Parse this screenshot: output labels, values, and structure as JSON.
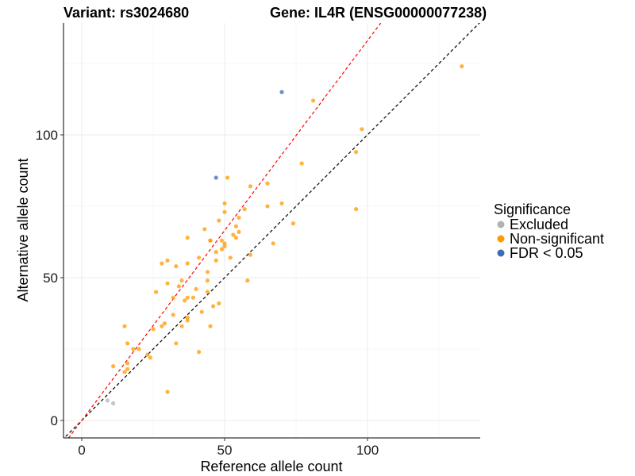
{
  "chart_data": {
    "type": "scatter",
    "title_left": "Variant: rs3024680",
    "title_right": "Gene: IL4R (ENSG00000077238)",
    "xlabel": "Reference allele count",
    "ylabel": "Alternative allele count",
    "xlim": [
      -7,
      140
    ],
    "ylim": [
      -6,
      140
    ],
    "xticks": [
      0,
      50,
      100
    ],
    "yticks": [
      0,
      50,
      100
    ],
    "reference_lines": [
      {
        "name": "identity",
        "slope": 1,
        "intercept": 0,
        "color": "#000000"
      },
      {
        "name": "fitted",
        "slope": 1.33,
        "intercept": 0,
        "color": "#ff0000"
      }
    ],
    "legend": {
      "title": "Significance",
      "entries": [
        {
          "label": "Excluded",
          "color": "#b3b3b3"
        },
        {
          "label": "Non-significant",
          "color": "#ff9900"
        },
        {
          "label": "FDR < 0.05",
          "color": "#3b6db0"
        }
      ]
    },
    "series": [
      {
        "name": "Excluded",
        "color": "#b3b3b3",
        "points": [
          [
            9,
            7
          ],
          [
            11,
            6
          ]
        ]
      },
      {
        "name": "FDR < 0.05",
        "color": "#3b6db0",
        "points": [
          [
            47,
            85
          ],
          [
            70,
            115
          ]
        ]
      },
      {
        "name": "Non-significant",
        "color": "#ff9900",
        "points": [
          [
            11,
            19
          ],
          [
            15,
            17
          ],
          [
            16,
            20
          ],
          [
            16,
            18
          ],
          [
            16,
            27
          ],
          [
            15,
            33
          ],
          [
            18,
            25
          ],
          [
            20,
            25
          ],
          [
            23,
            23
          ],
          [
            24,
            22
          ],
          [
            25,
            32
          ],
          [
            26,
            45
          ],
          [
            28,
            33
          ],
          [
            28,
            55
          ],
          [
            29,
            34
          ],
          [
            30,
            48
          ],
          [
            30,
            56
          ],
          [
            30,
            10
          ],
          [
            32,
            37
          ],
          [
            32,
            43
          ],
          [
            33,
            27
          ],
          [
            33,
            54
          ],
          [
            34,
            47
          ],
          [
            35,
            33
          ],
          [
            35,
            49
          ],
          [
            36,
            42
          ],
          [
            37,
            35
          ],
          [
            37,
            36
          ],
          [
            37,
            43
          ],
          [
            37,
            55
          ],
          [
            37,
            64
          ],
          [
            39,
            43
          ],
          [
            40,
            46
          ],
          [
            41,
            24
          ],
          [
            41,
            57
          ],
          [
            42,
            38
          ],
          [
            43,
            67
          ],
          [
            44,
            45
          ],
          [
            44,
            49
          ],
          [
            44,
            52
          ],
          [
            45,
            33
          ],
          [
            45,
            63
          ],
          [
            45,
            63
          ],
          [
            46,
            40
          ],
          [
            47,
            56
          ],
          [
            47,
            59
          ],
          [
            48,
            41
          ],
          [
            48,
            70
          ],
          [
            49,
            60
          ],
          [
            49,
            63
          ],
          [
            50,
            76
          ],
          [
            50,
            73
          ],
          [
            50,
            61
          ],
          [
            50,
            62
          ],
          [
            51,
            85
          ],
          [
            52,
            57
          ],
          [
            53,
            65
          ],
          [
            54,
            68
          ],
          [
            54,
            64
          ],
          [
            55,
            66
          ],
          [
            55,
            71
          ],
          [
            57,
            74
          ],
          [
            58,
            49
          ],
          [
            59,
            82
          ],
          [
            59,
            58
          ],
          [
            65,
            75
          ],
          [
            65,
            83
          ],
          [
            67,
            62
          ],
          [
            70,
            76
          ],
          [
            74,
            69
          ],
          [
            77,
            90
          ],
          [
            81,
            112
          ],
          [
            96,
            74
          ],
          [
            96,
            94
          ],
          [
            98,
            102
          ],
          [
            133,
            124
          ]
        ]
      }
    ]
  }
}
